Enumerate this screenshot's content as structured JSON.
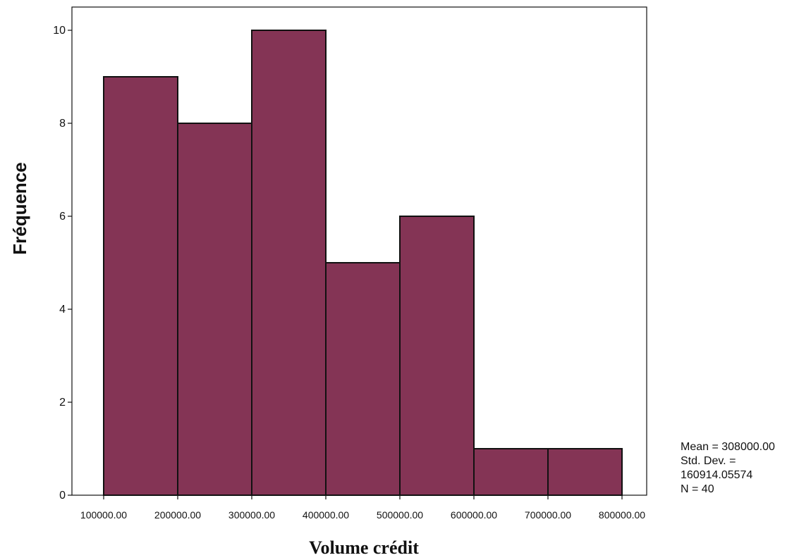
{
  "chart_data": {
    "type": "bar",
    "subtype": "histogram",
    "title": "",
    "xlabel": "Volume crédit",
    "ylabel": "Fréquence",
    "bin_edges": [
      100000,
      200000,
      300000,
      400000,
      500000,
      600000,
      700000,
      800000
    ],
    "bin_edge_labels": [
      "100000.00",
      "200000.00",
      "300000.00",
      "400000.00",
      "500000.00",
      "600000.00",
      "700000.00",
      "800000.00"
    ],
    "values": [
      9,
      8,
      10,
      5,
      6,
      1,
      1
    ],
    "ylim": [
      0,
      10.5
    ],
    "yticks": [
      0,
      2,
      4,
      6,
      8,
      10
    ],
    "ytick_labels": [
      "0",
      "2",
      "4",
      "6",
      "8",
      "10"
    ],
    "grid": false,
    "bar_color": "#843455",
    "stats": {
      "mean": "Mean = 308000.00",
      "std_dev_label": "Std. Dev. =",
      "std_dev_value": "160914.05574",
      "n": "N = 40"
    }
  }
}
